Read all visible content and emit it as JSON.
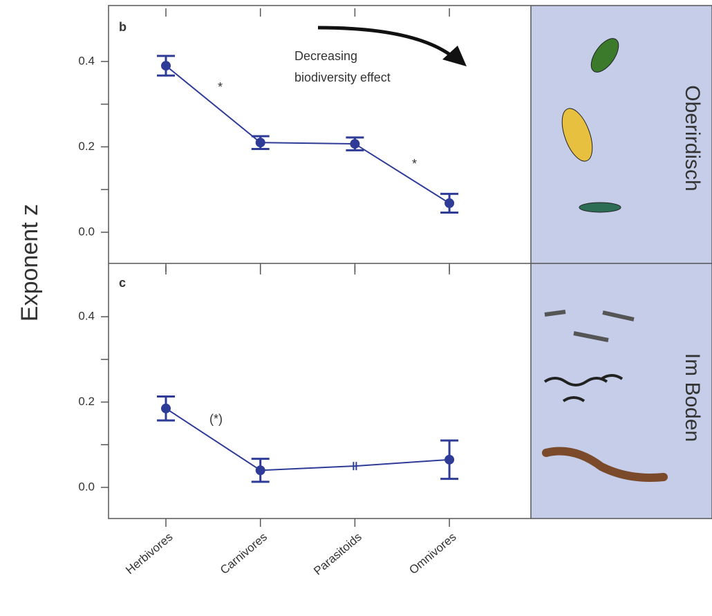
{
  "chart_data": [
    {
      "type": "line",
      "panel": "b",
      "ylabel": "Exponent z",
      "region_label": "Oberirdisch",
      "ylim": [
        -0.073,
        0.531
      ],
      "yticks": [
        {
          "value": 0,
          "label": "0.0"
        },
        {
          "value": 0.2,
          "label": "0.2"
        },
        {
          "value": 0.4,
          "label": "0.4"
        }
      ],
      "minor_yticks": [
        0.1,
        0.3
      ],
      "series": [
        {
          "color": "#2e3b97",
          "values": [
            0.39,
            0.21,
            0.207,
            0.068
          ],
          "errors": [
            0.023,
            0.015,
            0.015,
            0.022
          ]
        }
      ],
      "annotations": [
        "*",
        "*"
      ],
      "arrow_text": [
        "Decreasing",
        "biodiversity effect"
      ]
    },
    {
      "type": "line",
      "panel": "c",
      "region_label": "Im Boden",
      "categories": [
        "Herbivores",
        "Carnivores",
        "Parasitoids",
        "Omnivores"
      ],
      "ylim": [
        -0.073,
        0.525
      ],
      "yticks": [
        {
          "value": 0,
          "label": "0.0"
        },
        {
          "value": 0.2,
          "label": "0.2"
        },
        {
          "value": 0.4,
          "label": "0.4"
        }
      ],
      "minor_yticks": [
        0.1,
        0.3
      ],
      "series": [
        {
          "color": "#2e3b97",
          "values": [
            0.185,
            0.04,
            0.05,
            0.065
          ],
          "errors": [
            0.028,
            0.027,
            null,
            0.045
          ]
        }
      ],
      "annotations": [
        "(*)"
      ]
    }
  ]
}
